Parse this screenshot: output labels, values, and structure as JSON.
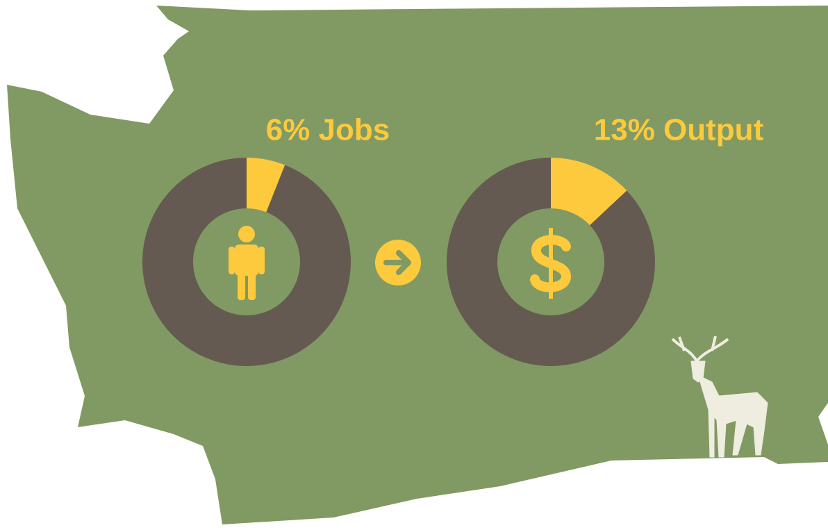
{
  "chart_data": [
    {
      "type": "pie",
      "title": "6% Jobs",
      "categories": [
        null,
        null
      ],
      "values": [
        6,
        94
      ],
      "colors": [
        "#fdc93d",
        "#655a52"
      ]
    },
    {
      "type": "pie",
      "title": "13% Output",
      "categories": [
        null,
        null
      ],
      "values": [
        13,
        87
      ],
      "colors": [
        "#fdc93d",
        "#655a52"
      ]
    }
  ]
}
